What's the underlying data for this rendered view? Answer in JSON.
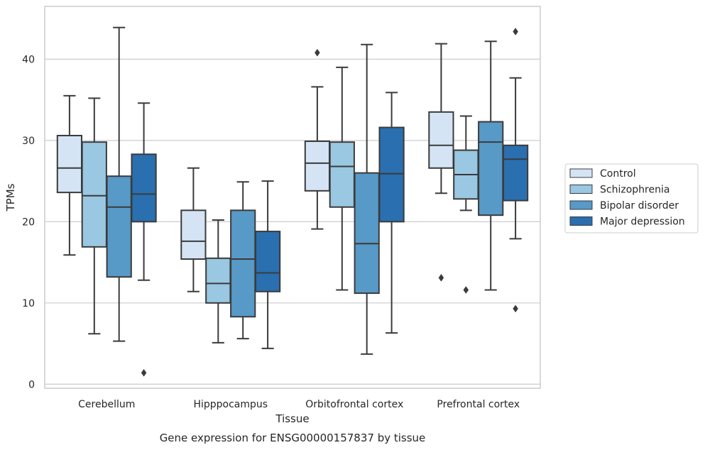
{
  "chart_data": {
    "type": "box",
    "xlabel": "Tissue",
    "ylabel": "TPMs",
    "caption": "Gene expression for ENSG00000157837 by tissue",
    "ylim": [
      -0.5,
      46.5
    ],
    "yticks": [
      0,
      10,
      20,
      30,
      40
    ],
    "grid": "horizontal",
    "legend_position": "right",
    "categories": [
      "Cerebellum",
      "Hipppocampus",
      "Orbitofrontal cortex",
      "Prefrontal cortex"
    ],
    "series": [
      {
        "name": "Control",
        "color": "#d4e4f4",
        "boxes": [
          {
            "whisker_low": 15.9,
            "q1": 23.6,
            "median": 26.6,
            "q3": 30.6,
            "whisker_high": 35.5,
            "outliers": []
          },
          {
            "whisker_low": 11.4,
            "q1": 15.4,
            "median": 17.6,
            "q3": 21.4,
            "whisker_high": 26.6,
            "outliers": []
          },
          {
            "whisker_low": 19.1,
            "q1": 23.8,
            "median": 27.2,
            "q3": 29.9,
            "whisker_high": 36.6,
            "outliers": [
              40.8
            ]
          },
          {
            "whisker_low": 23.5,
            "q1": 26.6,
            "median": 29.4,
            "q3": 33.5,
            "whisker_high": 41.9,
            "outliers": [
              13.1
            ]
          }
        ]
      },
      {
        "name": "Schizophrenia",
        "color": "#9ac7e1",
        "boxes": [
          {
            "whisker_low": 6.2,
            "q1": 16.9,
            "median": 23.2,
            "q3": 29.8,
            "whisker_high": 35.2,
            "outliers": []
          },
          {
            "whisker_low": 5.1,
            "q1": 10.0,
            "median": 12.4,
            "q3": 15.5,
            "whisker_high": 20.2,
            "outliers": []
          },
          {
            "whisker_low": 11.6,
            "q1": 21.8,
            "median": 26.8,
            "q3": 29.8,
            "whisker_high": 39.0,
            "outliers": []
          },
          {
            "whisker_low": 21.4,
            "q1": 22.8,
            "median": 25.8,
            "q3": 28.8,
            "whisker_high": 33.0,
            "outliers": [
              11.6
            ]
          }
        ]
      },
      {
        "name": "Bipolar disorder",
        "color": "#5799c7",
        "boxes": [
          {
            "whisker_low": 5.3,
            "q1": 13.2,
            "median": 21.8,
            "q3": 25.6,
            "whisker_high": 43.9,
            "outliers": []
          },
          {
            "whisker_low": 5.6,
            "q1": 8.3,
            "median": 15.4,
            "q3": 21.4,
            "whisker_high": 24.9,
            "outliers": []
          },
          {
            "whisker_low": 3.7,
            "q1": 11.2,
            "median": 17.3,
            "q3": 26.0,
            "whisker_high": 41.8,
            "outliers": []
          },
          {
            "whisker_low": 11.6,
            "q1": 20.8,
            "median": 29.8,
            "q3": 32.3,
            "whisker_high": 42.2,
            "outliers": []
          }
        ]
      },
      {
        "name": "Major depression",
        "color": "#2a6faf",
        "boxes": [
          {
            "whisker_low": 12.8,
            "q1": 20.0,
            "median": 23.4,
            "q3": 28.3,
            "whisker_high": 34.6,
            "outliers": [
              1.4
            ]
          },
          {
            "whisker_low": 4.4,
            "q1": 11.4,
            "median": 13.7,
            "q3": 18.8,
            "whisker_high": 25.0,
            "outliers": []
          },
          {
            "whisker_low": 6.3,
            "q1": 20.0,
            "median": 25.9,
            "q3": 31.6,
            "whisker_high": 35.9,
            "outliers": []
          },
          {
            "whisker_low": 17.9,
            "q1": 22.6,
            "median": 27.7,
            "q3": 29.4,
            "whisker_high": 37.7,
            "outliers": [
              43.4,
              9.3
            ]
          }
        ]
      }
    ]
  }
}
